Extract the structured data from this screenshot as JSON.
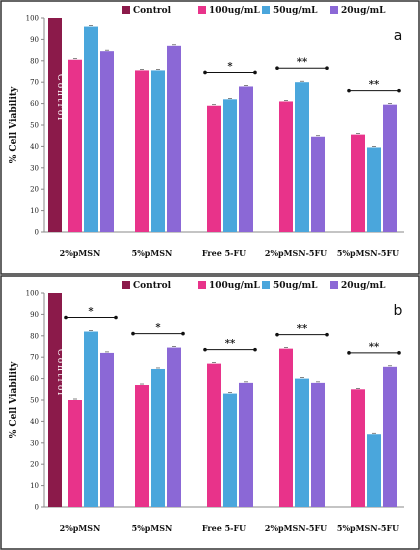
{
  "colors": {
    "control": "#8b1a4a",
    "c100": "#e8338a",
    "c50": "#4aa6dc",
    "c20": "#8b68d6",
    "frame": "#333333"
  },
  "chart_data": [
    {
      "panel": "a",
      "type": "bar",
      "ylabel": "% Cell Viability",
      "ylim": [
        0,
        100
      ],
      "yticks": [
        0,
        10,
        20,
        30,
        40,
        50,
        60,
        70,
        80,
        90,
        100
      ],
      "categories": [
        "2%pMSN",
        "5%pMSN",
        "Free 5-FU",
        "2%pMSN-5FU",
        "5%pMSN-5FU"
      ],
      "legend": [
        "Control",
        "100ug/mL",
        "50ug/mL",
        "20ug/mL"
      ],
      "control": {
        "value": 100,
        "label": "Control"
      },
      "series": [
        {
          "name": "100ug/mL",
          "values": [
            80.5,
            75.5,
            59,
            61,
            45.5
          ]
        },
        {
          "name": "50ug/mL",
          "values": [
            96,
            75.5,
            62,
            70,
            39.5
          ]
        },
        {
          "name": "20ug/mL",
          "values": [
            84.5,
            87,
            68,
            44.5,
            59.5
          ]
        }
      ],
      "significance": [
        {
          "category": 2,
          "label": "*"
        },
        {
          "category": 3,
          "label": "**"
        },
        {
          "category": 4,
          "label": "**"
        }
      ]
    },
    {
      "panel": "b",
      "type": "bar",
      "ylabel": "% Cell Viability",
      "ylim": [
        0,
        100
      ],
      "yticks": [
        0,
        10,
        20,
        30,
        40,
        50,
        60,
        70,
        80,
        90,
        100
      ],
      "categories": [
        "2%pMSN",
        "5%pMSN",
        "Free 5-FU",
        "2%pMSN-5FU",
        "5%pMSN-5FU"
      ],
      "legend": [
        "Control",
        "100ug/mL",
        "50ug/mL",
        "20ug/mL"
      ],
      "control": {
        "value": 100,
        "label": "Control"
      },
      "series": [
        {
          "name": "100ug/mL",
          "values": [
            50,
            57,
            67,
            74,
            55
          ]
        },
        {
          "name": "50ug/mL",
          "values": [
            82,
            64.5,
            53,
            60,
            34
          ]
        },
        {
          "name": "20ug/mL",
          "values": [
            72,
            74.5,
            58,
            58,
            65.5
          ]
        }
      ],
      "significance": [
        {
          "category": 0,
          "label": "*"
        },
        {
          "category": 1,
          "label": "*"
        },
        {
          "category": 2,
          "label": "**"
        },
        {
          "category": 3,
          "label": "**"
        },
        {
          "category": 4,
          "label": "**"
        }
      ]
    }
  ]
}
